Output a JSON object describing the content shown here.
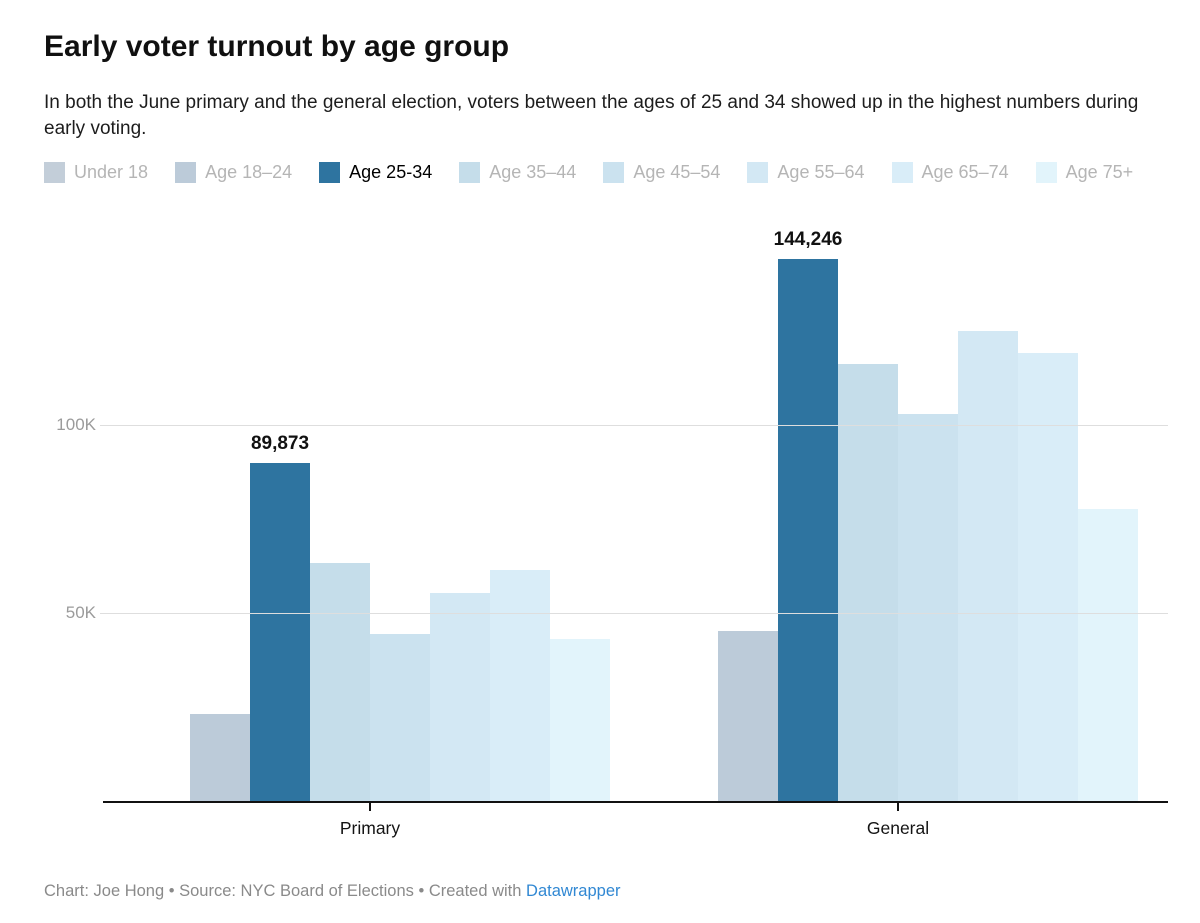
{
  "header": {
    "title": "Early voter turnout by age group",
    "description": "In both the June primary and the general election, voters between the ages of 25 and 34 showed up in the highest numbers during early voting."
  },
  "legend": {
    "active_text_color": "#000000",
    "inactive_text_color": "#b5b5b5",
    "items": [
      {
        "label": "Under 18",
        "color": "#c3ced9",
        "active": false
      },
      {
        "label": "Age 18–24",
        "color": "#bccbd9",
        "active": false
      },
      {
        "label": "Age 25-34",
        "color": "#2e74a0",
        "active": true
      },
      {
        "label": "Age 35–44",
        "color": "#c5ddea",
        "active": false
      },
      {
        "label": "Age 45–54",
        "color": "#cbe2ef",
        "active": false
      },
      {
        "label": "Age 55–64",
        "color": "#d3e8f4",
        "active": false
      },
      {
        "label": "Age 65–74",
        "color": "#d9edf8",
        "active": false
      },
      {
        "label": "Age 75+",
        "color": "#e2f4fb",
        "active": false
      }
    ]
  },
  "chart_data": {
    "type": "bar",
    "grouped": true,
    "title": "Early voter turnout by age group",
    "categories": [
      "Primary",
      "General"
    ],
    "series": [
      {
        "name": "Under 18",
        "color": "#c3ced9",
        "values": [
          0,
          0
        ]
      },
      {
        "name": "Age 18–24",
        "color": "#bccbd9",
        "values": [
          23100,
          45100
        ]
      },
      {
        "name": "Age 25-34",
        "color": "#2e74a0",
        "values": [
          89873,
          144246
        ],
        "highlighted": true,
        "data_labels": [
          "89,873",
          "144,246"
        ]
      },
      {
        "name": "Age 35–44",
        "color": "#c5ddea",
        "values": [
          63200,
          116200
        ]
      },
      {
        "name": "Age 45–54",
        "color": "#cbe2ef",
        "values": [
          44300,
          102900
        ]
      },
      {
        "name": "Age 55–64",
        "color": "#d3e8f4",
        "values": [
          55400,
          124900
        ]
      },
      {
        "name": "Age 65–74",
        "color": "#d9edf8",
        "values": [
          61500,
          119100
        ]
      },
      {
        "name": "Age 75+",
        "color": "#e2f4fb",
        "values": [
          43000,
          77700
        ]
      }
    ],
    "yticks": [
      {
        "label": "50K",
        "value": 50000
      },
      {
        "label": "100K",
        "value": 100000
      }
    ],
    "ylim": [
      0,
      152000
    ],
    "grid": true,
    "legend_position": "top",
    "xlabel": "",
    "ylabel": ""
  },
  "footer": {
    "credit_text": "Chart: Joe Hong • Source: NYC Board of Elections • Created with ",
    "link_label": "Datawrapper",
    "link_color": "#3188d3"
  }
}
